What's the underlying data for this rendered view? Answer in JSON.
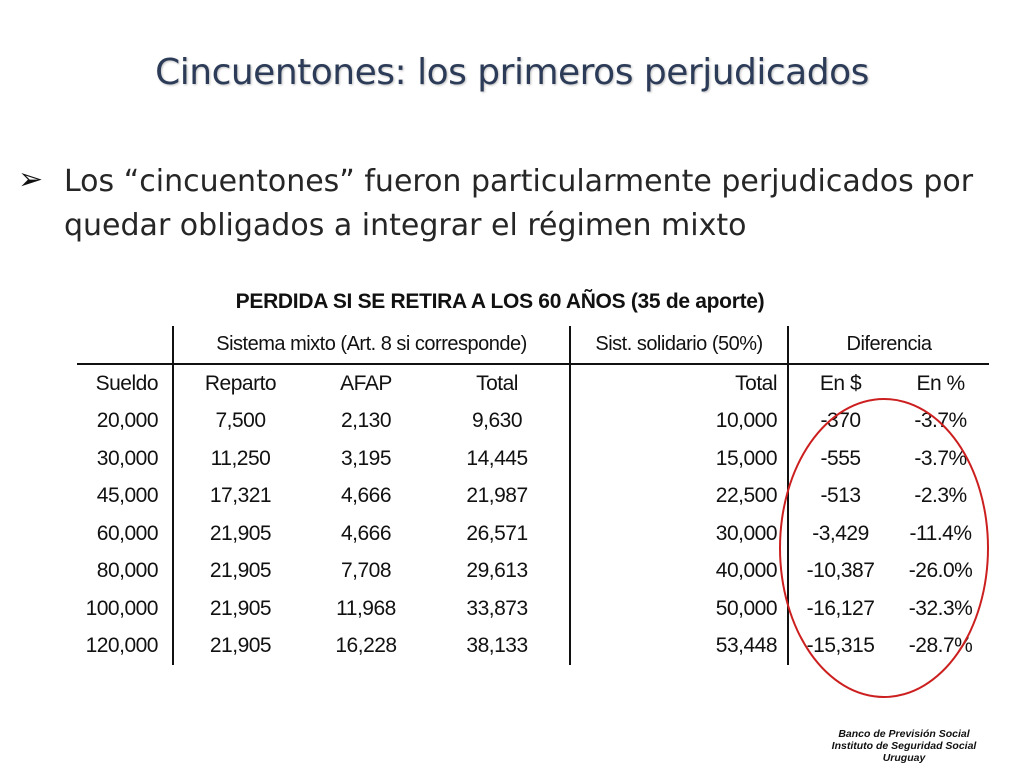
{
  "slide": {
    "title": "Cincuentones: los primeros perjudicados",
    "bullet_icon": "arrow-bullet-icon",
    "bullet_text": "Los “cincuentones” fueron particularmente perjudicados por quedar obligados a integrar el régimen mixto"
  },
  "table": {
    "title": "PERDIDA SI SE RETIRA A LOS 60 AÑOS (35 de aporte)",
    "groups": {
      "mixto": "Sistema mixto (Art. 8 si corresponde)",
      "solidario": "Sist. solidario (50%)",
      "diferencia": "Diferencia"
    },
    "columns": [
      "Sueldo",
      "Reparto",
      "AFAP",
      "Total",
      "Total",
      "En $",
      "En %"
    ],
    "rows": [
      [
        "20,000",
        "7,500",
        "2,130",
        "9,630",
        "10,000",
        "-370",
        "-3.7%"
      ],
      [
        "30,000",
        "11,250",
        "3,195",
        "14,445",
        "15,000",
        "-555",
        "-3.7%"
      ],
      [
        "45,000",
        "17,321",
        "4,666",
        "21,987",
        "22,500",
        "-513",
        "-2.3%"
      ],
      [
        "60,000",
        "21,905",
        "4,666",
        "26,571",
        "30,000",
        "-3,429",
        "-11.4%"
      ],
      [
        "80,000",
        "21,905",
        "7,708",
        "29,613",
        "40,000",
        "-10,387",
        "-26.0%"
      ],
      [
        "100,000",
        "21,905",
        "11,968",
        "33,873",
        "50,000",
        "-16,127",
        "-32.3%"
      ],
      [
        "120,000",
        "21,905",
        "16,228",
        "38,133",
        "53,448",
        "-15,315",
        "-28.7%"
      ]
    ],
    "highlight_color": "#cc1f1f"
  },
  "footer": {
    "line1": "Banco de Previsión Social",
    "line2": "Instituto de Seguridad Social",
    "line3": "Uruguay"
  }
}
